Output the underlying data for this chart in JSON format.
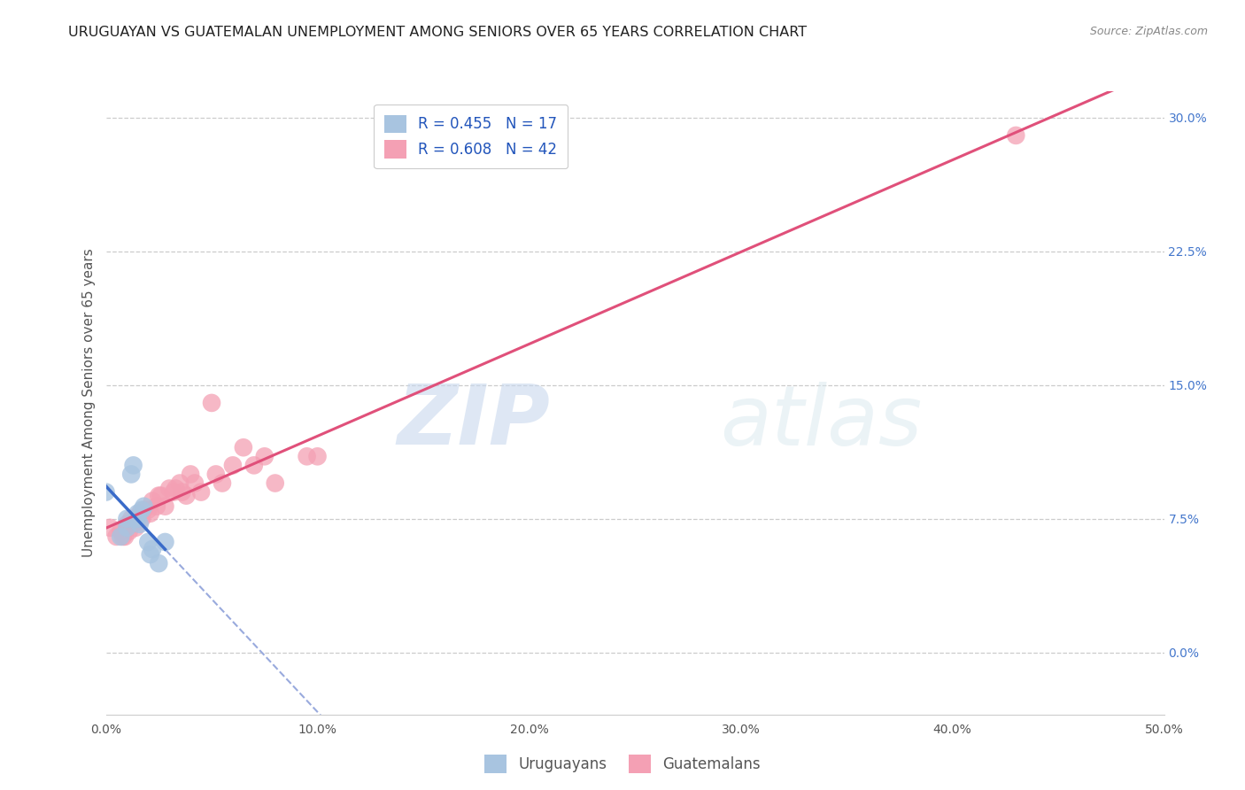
{
  "title": "URUGUAYAN VS GUATEMALAN UNEMPLOYMENT AMONG SENIORS OVER 65 YEARS CORRELATION CHART",
  "source": "Source: ZipAtlas.com",
  "ylabel": "Unemployment Among Seniors over 65 years",
  "xlim": [
    0.0,
    0.5
  ],
  "ylim": [
    -0.035,
    0.315
  ],
  "xticks": [
    0.0,
    0.1,
    0.2,
    0.3,
    0.4,
    0.5
  ],
  "xticklabels": [
    "0.0%",
    "10.0%",
    "20.0%",
    "30.0%",
    "40.0%",
    "50.0%"
  ],
  "yticks": [
    0.0,
    0.075,
    0.15,
    0.225,
    0.3
  ],
  "yticklabels": [
    "0.0%",
    "7.5%",
    "15.0%",
    "22.5%",
    "30.0%"
  ],
  "uruguayan_R": 0.455,
  "uruguayan_N": 17,
  "guatemalan_R": 0.608,
  "guatemalan_N": 42,
  "uruguayan_color": "#a8c4e0",
  "guatemalan_color": "#f4a0b4",
  "uruguayan_line_color": "#3a6bc9",
  "guatemalan_line_color": "#e0507a",
  "uruguayan_x": [
    0.0,
    0.007,
    0.01,
    0.01,
    0.012,
    0.013,
    0.014,
    0.015,
    0.015,
    0.016,
    0.017,
    0.018,
    0.02,
    0.021,
    0.022,
    0.025,
    0.028
  ],
  "uruguayan_y": [
    0.09,
    0.065,
    0.07,
    0.075,
    0.1,
    0.105,
    0.075,
    0.075,
    0.078,
    0.072,
    0.08,
    0.082,
    0.062,
    0.055,
    0.058,
    0.05,
    0.062
  ],
  "guatemalan_x": [
    0.002,
    0.005,
    0.007,
    0.008,
    0.009,
    0.01,
    0.01,
    0.011,
    0.012,
    0.013,
    0.014,
    0.015,
    0.016,
    0.017,
    0.018,
    0.02,
    0.021,
    0.022,
    0.024,
    0.025,
    0.026,
    0.028,
    0.03,
    0.032,
    0.033,
    0.035,
    0.036,
    0.038,
    0.04,
    0.042,
    0.045,
    0.05,
    0.052,
    0.055,
    0.06,
    0.065,
    0.07,
    0.075,
    0.08,
    0.095,
    0.43,
    0.1
  ],
  "guatemalan_y": [
    0.07,
    0.065,
    0.068,
    0.065,
    0.065,
    0.07,
    0.072,
    0.068,
    0.075,
    0.072,
    0.07,
    0.075,
    0.078,
    0.075,
    0.08,
    0.08,
    0.078,
    0.085,
    0.082,
    0.088,
    0.088,
    0.082,
    0.092,
    0.09,
    0.092,
    0.095,
    0.09,
    0.088,
    0.1,
    0.095,
    0.09,
    0.14,
    0.1,
    0.095,
    0.105,
    0.115,
    0.105,
    0.11,
    0.095,
    0.11,
    0.29,
    0.11
  ],
  "watermark_zip": "ZIP",
  "watermark_atlas": "atlas",
  "background_color": "#ffffff",
  "grid_color": "#cccccc",
  "title_fontsize": 11.5,
  "axis_label_fontsize": 11,
  "tick_fontsize": 10,
  "legend_fontsize": 12,
  "source_fontsize": 9
}
